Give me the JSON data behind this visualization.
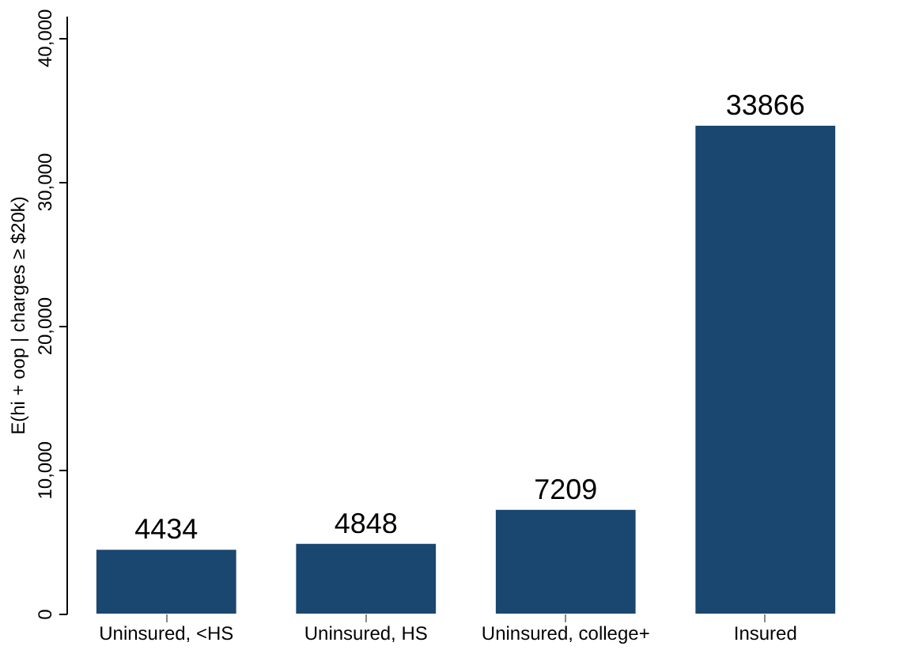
{
  "chart_data": {
    "type": "bar",
    "categories": [
      "Uninsured, <HS",
      "Uninsured, HS",
      "Uninsured, college+",
      "Insured"
    ],
    "values": [
      4434,
      4848,
      7209,
      33866
    ],
    "color": "#1a476f",
    "ylabel": "E(hi + oop | charges ≥ $20k)",
    "ylim": [
      0,
      41500
    ],
    "yticks": [
      0,
      {
        "value": 10000,
        "label": "10,000"
      },
      {
        "value": 20000,
        "label": "20,000"
      },
      {
        "value": 30000,
        "label": "30,000"
      },
      {
        "value": 40000,
        "label": "40,000"
      }
    ],
    "data_labels": true,
    "grid": false
  }
}
